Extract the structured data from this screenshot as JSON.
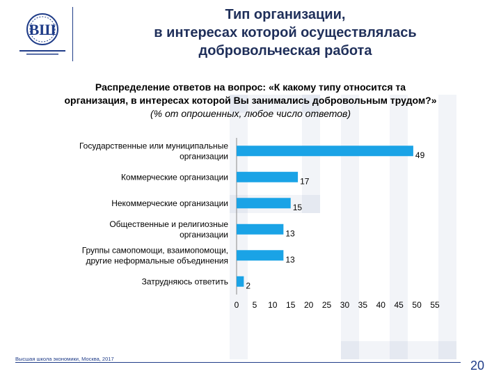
{
  "slide": {
    "title_lines": [
      "Тип организации,",
      "в интересах которой осуществлялась",
      "добровольческая работа"
    ],
    "subtitle_lines": [
      "Распределение ответов на вопрос: «К какому типу относится та",
      "организация, в интересах которой Вы занимались добровольным трудом?»"
    ],
    "note": "(% от опрошенных, любое число ответов)",
    "footer": "Высшая школа экономики, Москва, 2017",
    "page_number": "20",
    "colors": {
      "bar": "#1aa3e6",
      "brand": "#1f3c88"
    }
  },
  "chart_data": {
    "type": "bar",
    "orientation": "horizontal",
    "categories": [
      [
        "Государственные или муниципальные",
        "организации"
      ],
      [
        "Коммерческие организации"
      ],
      [
        "Некоммерческие организации"
      ],
      [
        "Общественные и религиозные",
        "организации"
      ],
      [
        "Группы самопомощи, взаимопомощи,",
        "другие неформальные объединения"
      ],
      [
        "Затрудняюсь ответить"
      ]
    ],
    "values": [
      49,
      17,
      15,
      13,
      13,
      2
    ],
    "data_labels": [
      "49",
      "17",
      "15",
      "13",
      "13",
      "2"
    ],
    "xlim": [
      0,
      55
    ],
    "xticks": [
      "0",
      "5",
      "10",
      "15",
      "20",
      "25",
      "30",
      "35",
      "40",
      "45",
      "50",
      "55"
    ],
    "grid": false,
    "legend": "none"
  }
}
